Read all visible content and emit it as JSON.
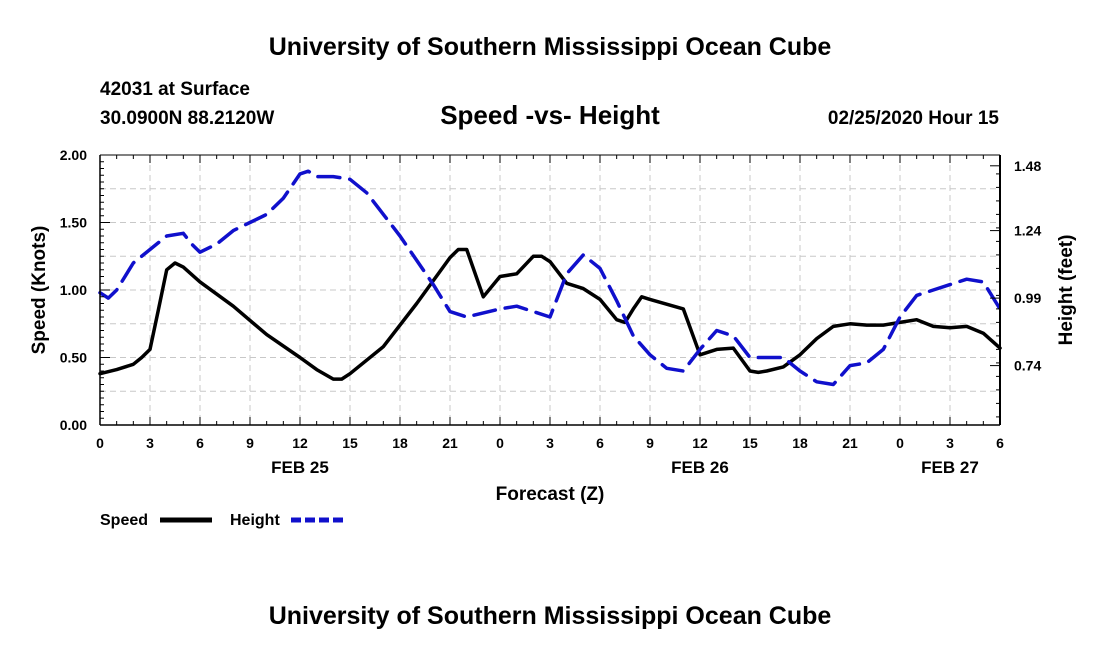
{
  "header": {
    "title": "University of Southern Mississippi Ocean Cube",
    "station": "42031 at Surface",
    "coords": "30.0900N 88.2120W",
    "chart_title": "Speed -vs- Height",
    "datetime": "02/25/2020 Hour 15"
  },
  "footer": {
    "title": "University of Southern Mississippi Ocean Cube"
  },
  "legend": {
    "speed_label": "Speed",
    "height_label": "Height"
  },
  "colors": {
    "speed": "#000000",
    "height": "#1010cc",
    "grid": "#c8c8c8"
  },
  "chart_data": {
    "type": "line",
    "title": "Speed -vs- Height",
    "xlabel": "Forecast (Z)",
    "ylabel": "Speed (Knots)",
    "ylabel_right": "Height (feet)",
    "x_range": [
      0,
      54
    ],
    "x_unit": "hours from 2020-02-25 00Z",
    "xticks": [
      0,
      3,
      6,
      9,
      12,
      15,
      18,
      21,
      24,
      27,
      30,
      33,
      36,
      39,
      42,
      45,
      48,
      51,
      54
    ],
    "xtick_labels": [
      "0",
      "3",
      "6",
      "9",
      "12",
      "15",
      "18",
      "21",
      "0",
      "3",
      "6",
      "9",
      "12",
      "15",
      "18",
      "21",
      "0",
      "3",
      "6"
    ],
    "date_labels": [
      {
        "x": 12,
        "label": "FEB 25"
      },
      {
        "x": 36,
        "label": "FEB 26"
      },
      {
        "x": 51,
        "label": "FEB 27"
      }
    ],
    "ylim": [
      0,
      2
    ],
    "yticks": [
      0,
      0.5,
      1,
      1.5,
      2
    ],
    "ytick_labels": [
      "0.00",
      "0.50",
      "1.00",
      "1.50",
      "2.00"
    ],
    "ylim_right": [
      0.52,
      1.52
    ],
    "yticks_right": [
      0.74,
      0.99,
      1.24,
      1.48
    ],
    "ytick_labels_right": [
      "0.74",
      "0.99",
      "1.24",
      "1.48"
    ],
    "grid": true,
    "series": [
      {
        "name": "Speed",
        "axis": "left",
        "style": "solid",
        "x": [
          0,
          1,
          2,
          2.5,
          3,
          3.5,
          4,
          4.5,
          5,
          6,
          8,
          10,
          12,
          13,
          14,
          14.5,
          15,
          17,
          19,
          21,
          21.5,
          22,
          23,
          24,
          25,
          26,
          26.5,
          27,
          28,
          29,
          30,
          31,
          31.5,
          32,
          32.5,
          33,
          35,
          36,
          37,
          38,
          39,
          39.5,
          40,
          41,
          42,
          43,
          44,
          45,
          46,
          47,
          48,
          49,
          50,
          51,
          52,
          53,
          54
        ],
        "values": [
          0.38,
          0.41,
          0.45,
          0.5,
          0.56,
          0.85,
          1.15,
          1.2,
          1.17,
          1.06,
          0.88,
          0.67,
          0.5,
          0.41,
          0.34,
          0.34,
          0.38,
          0.58,
          0.9,
          1.24,
          1.3,
          1.3,
          0.95,
          1.1,
          1.12,
          1.25,
          1.25,
          1.21,
          1.05,
          1.01,
          0.93,
          0.78,
          0.76,
          0.86,
          0.95,
          0.93,
          0.86,
          0.52,
          0.56,
          0.57,
          0.4,
          0.39,
          0.4,
          0.43,
          0.52,
          0.64,
          0.73,
          0.75,
          0.74,
          0.74,
          0.76,
          0.78,
          0.73,
          0.72,
          0.73,
          0.68,
          0.57
        ]
      },
      {
        "name": "Height",
        "axis": "right",
        "style": "dashed",
        "x": [
          0,
          0.5,
          1,
          2,
          3,
          4,
          5,
          5.5,
          6,
          7,
          8,
          9,
          10,
          11,
          12,
          12.5,
          13,
          14,
          15,
          16,
          18,
          20,
          21,
          22,
          24,
          25,
          27,
          28,
          29,
          30,
          31,
          32,
          33,
          34,
          35,
          36,
          37,
          38,
          39,
          40,
          41,
          42,
          43,
          44,
          45,
          46,
          47,
          48,
          49,
          50,
          51,
          52,
          53,
          54
        ],
        "values": [
          1.01,
          0.99,
          1.02,
          1.12,
          1.17,
          1.22,
          1.23,
          1.19,
          1.16,
          1.19,
          1.24,
          1.27,
          1.3,
          1.36,
          1.45,
          1.46,
          1.44,
          1.44,
          1.43,
          1.38,
          1.22,
          1.04,
          0.94,
          0.92,
          0.95,
          0.96,
          0.92,
          1.08,
          1.15,
          1.1,
          0.98,
          0.85,
          0.78,
          0.73,
          0.72,
          0.8,
          0.87,
          0.85,
          0.77,
          0.77,
          0.77,
          0.72,
          0.68,
          0.67,
          0.74,
          0.75,
          0.8,
          0.92,
          1.0,
          1.02,
          1.04,
          1.06,
          1.05,
          0.95
        ]
      }
    ]
  }
}
